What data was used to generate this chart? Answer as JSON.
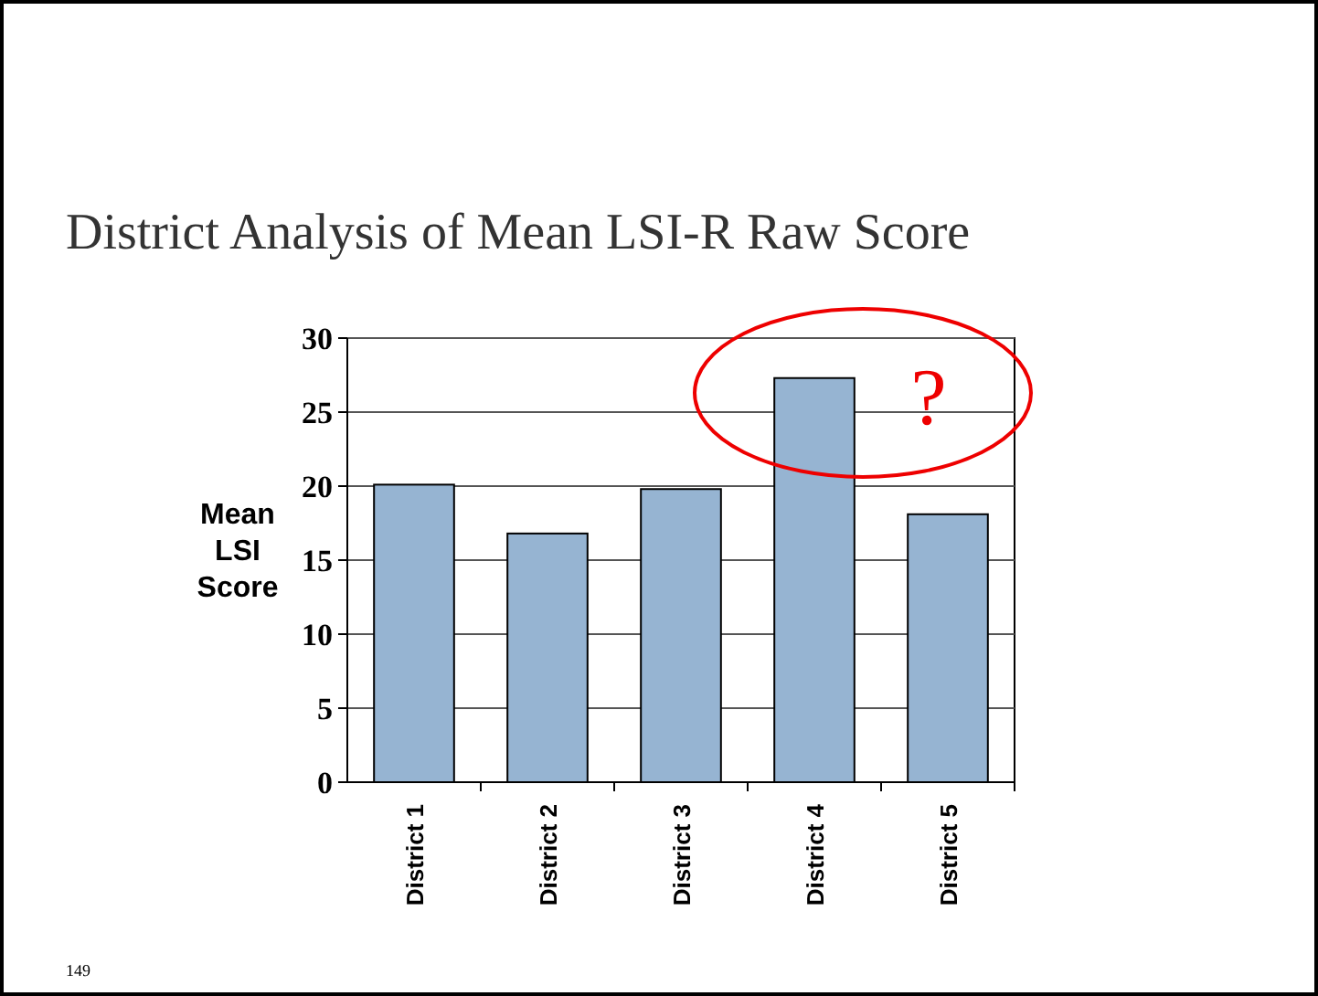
{
  "chart_data": {
    "type": "bar",
    "title": "District Analysis of Mean LSI-R Raw Score",
    "ylabel": "Mean LSI Score",
    "categories": [
      "District 1",
      "District 2",
      "District 3",
      "District 4",
      "District 5"
    ],
    "values": [
      20.1,
      16.8,
      19.8,
      27.3,
      18.1
    ],
    "color": "#96b4d2",
    "ylim": [
      0,
      30
    ],
    "yticks": [
      0,
      5,
      10,
      15,
      20,
      25,
      30
    ],
    "grid": "y",
    "annotations": [
      "?",
      "149"
    ]
  }
}
